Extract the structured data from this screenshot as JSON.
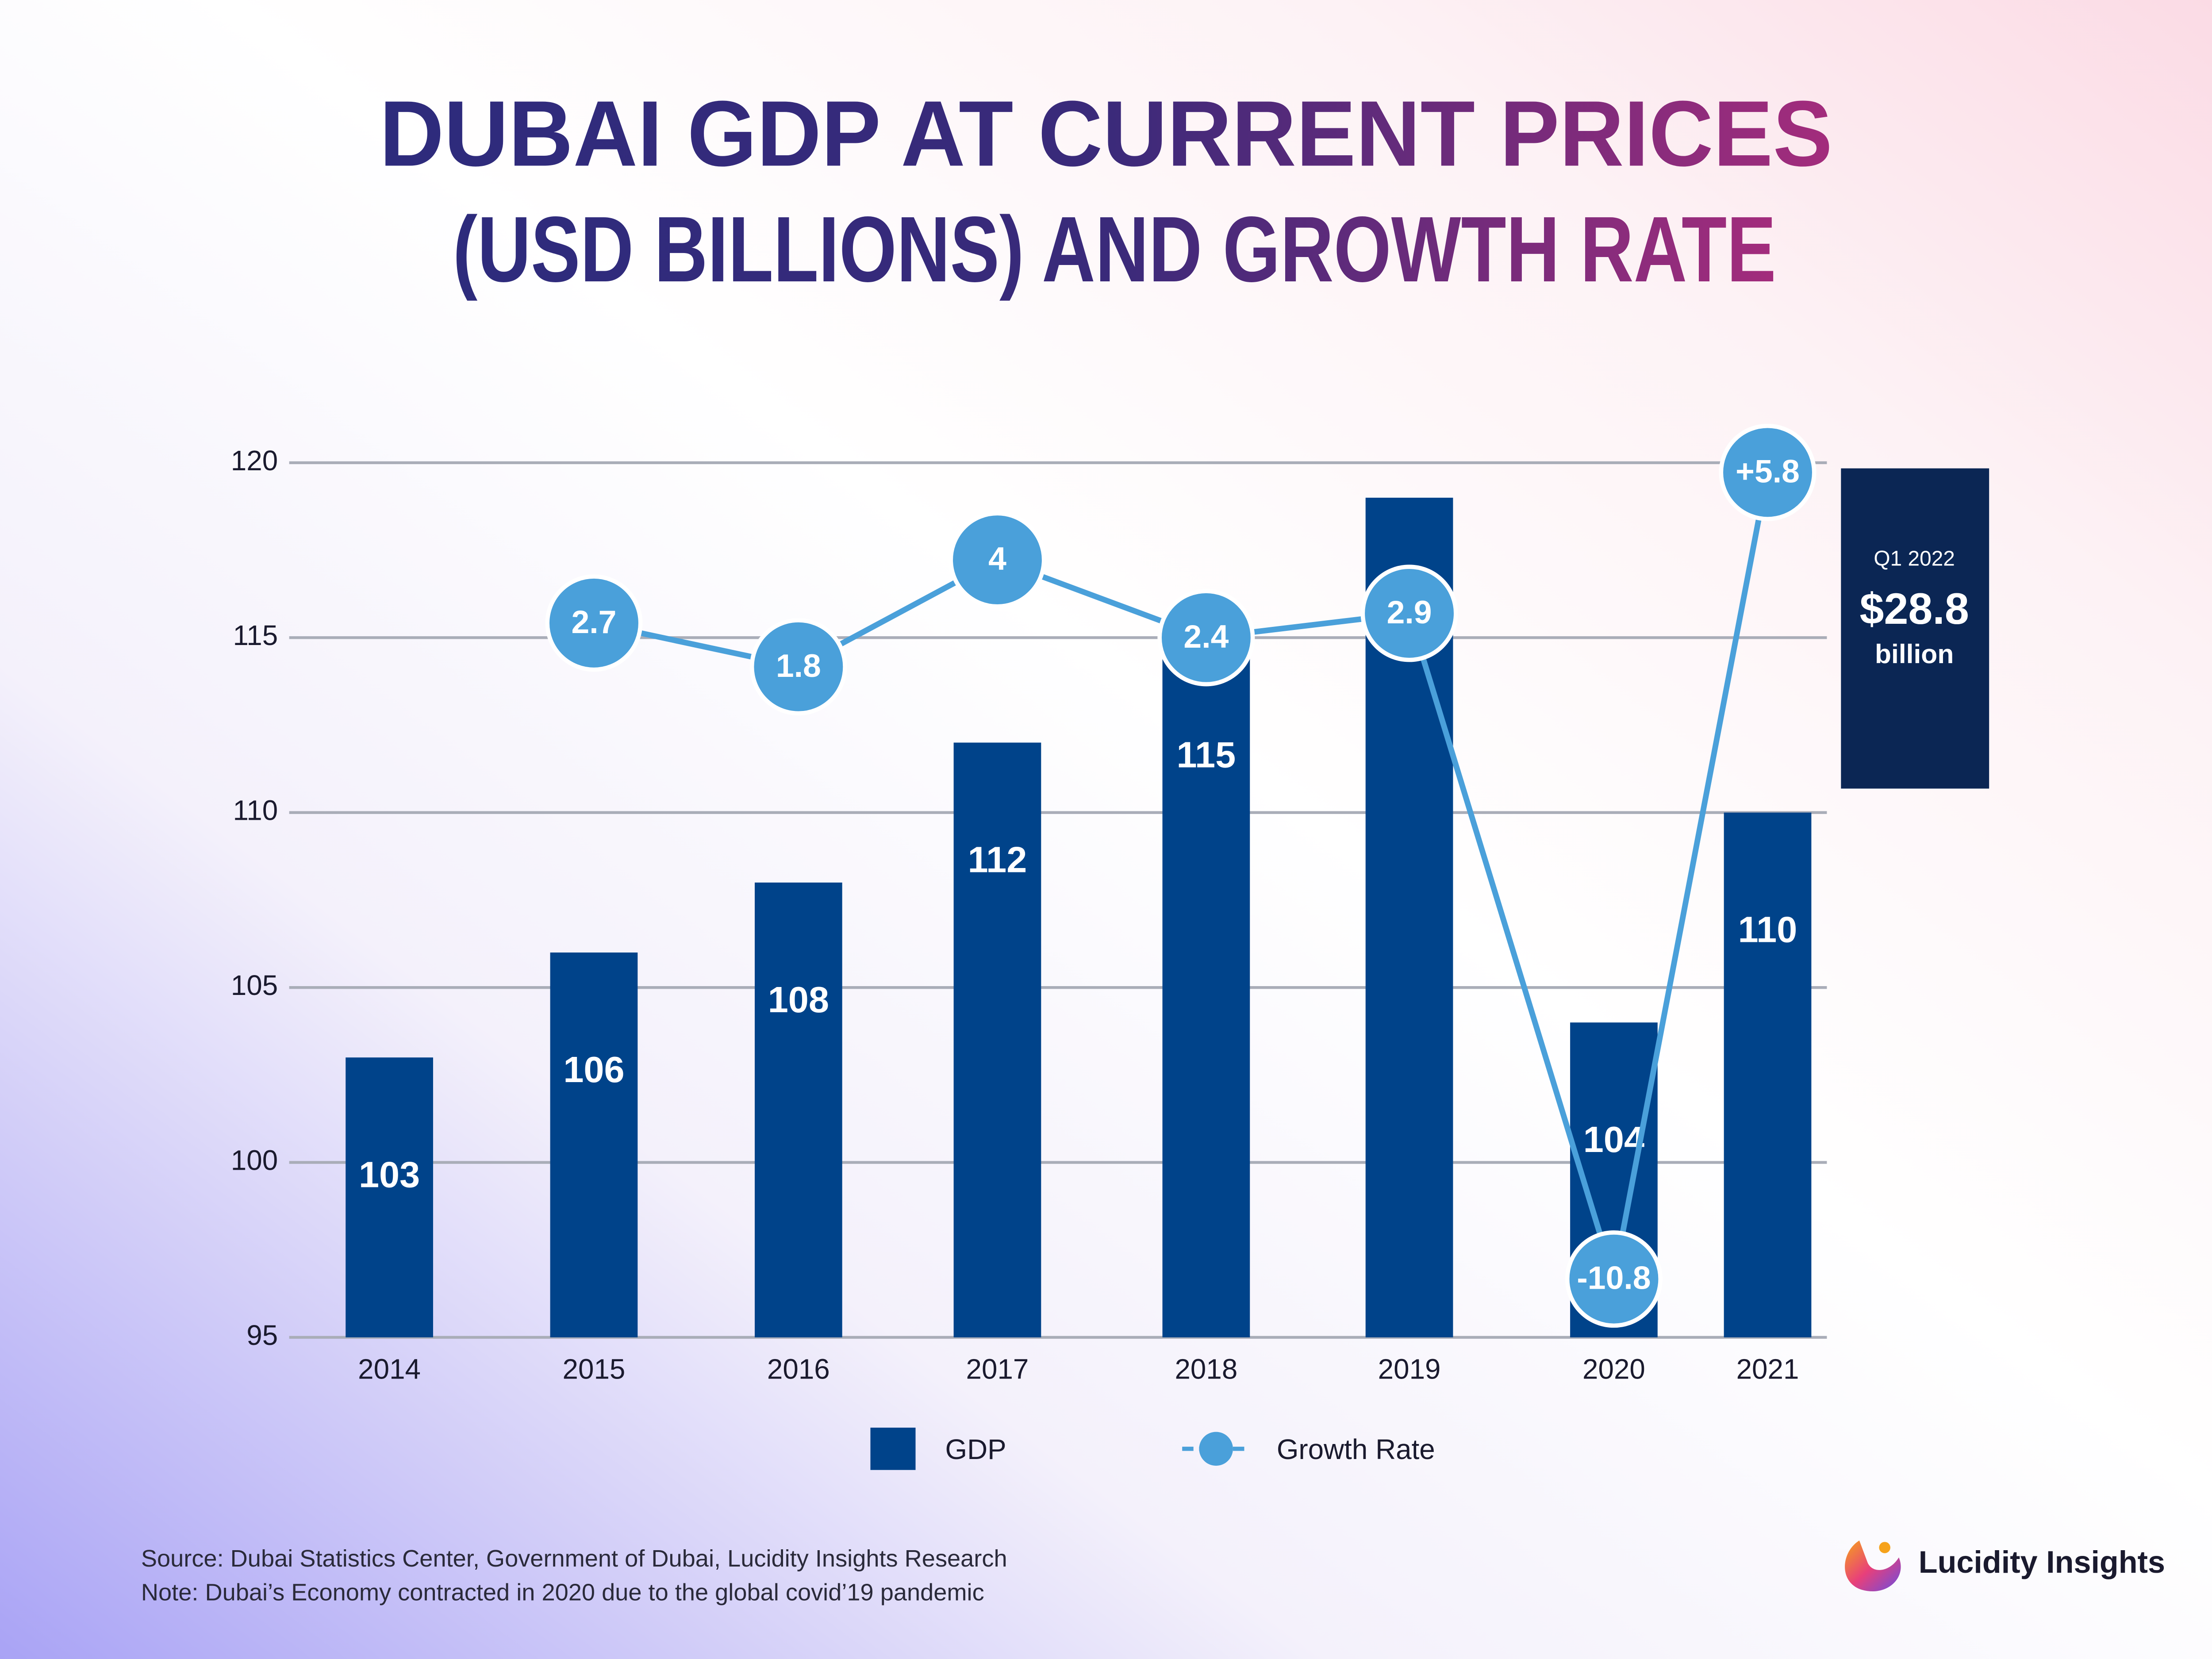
{
  "chart_data": {
    "type": "bar",
    "title": "DUBAI GDP AT CURRENT PRICES",
    "subtitle": "(USD BILLIONS) AND GROWTH RATE",
    "categories": [
      "2014",
      "2015",
      "2016",
      "2017",
      "2018",
      "2019",
      "2020",
      "2021"
    ],
    "series": [
      {
        "name": "GDP",
        "type": "bar",
        "color": "#00438a",
        "values": [
          103,
          106,
          108,
          112,
          115,
          119,
          104,
          110
        ]
      },
      {
        "name": "Growth Rate",
        "type": "line",
        "axis": "y2",
        "color": "#4aa0da",
        "values": [
          null,
          2.7,
          1.8,
          4,
          2.4,
          2.9,
          -10.8,
          5.8
        ],
        "value_labels": [
          null,
          "2.7",
          "1.8",
          "4",
          "2.4",
          "2.9",
          "-10.8",
          "+5.8"
        ]
      }
    ],
    "ylim": [
      95,
      120
    ],
    "yticks": [
      95,
      100,
      105,
      110,
      115,
      120
    ],
    "y2lim": [
      -12,
      6
    ],
    "grid": true,
    "annotation": [
      "Q1 2022",
      "$28.8",
      "billion"
    ],
    "source": "Source: Dubai Statistics Center, Government of Dubai, Lucidity Insights Research",
    "note": "Note: Dubai’s Economy contracted in 2020 due to the global covid’19 pandemic",
    "brand": "Lucidity Insights"
  }
}
